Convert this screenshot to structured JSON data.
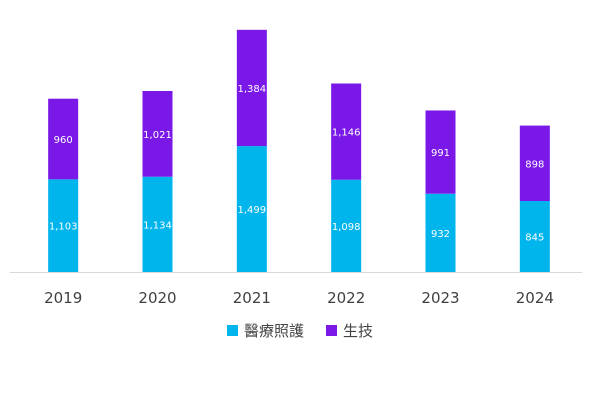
{
  "colors": {
    "medical": "#00b4ec",
    "biotech": "#7a18e8",
    "axis": "#d9d9d9",
    "tick_text": "#404040",
    "label_text": "#ffffff"
  },
  "chart_data": {
    "type": "bar",
    "stacked": true,
    "categories": [
      "2019",
      "2020",
      "2021",
      "2022",
      "2023",
      "2024"
    ],
    "series": [
      {
        "name": "醫療照護",
        "color": "#00b4ec",
        "values": [
          1103,
          1134,
          1499,
          1098,
          932,
          845
        ],
        "labels": [
          "1,103",
          "1,134",
          "1,499",
          "1,098",
          "932",
          "845"
        ]
      },
      {
        "name": "生技",
        "color": "#7a18e8",
        "values": [
          960,
          1021,
          1384,
          1146,
          991,
          898
        ],
        "labels": [
          "960",
          "1,021",
          "1,384",
          "1,146",
          "991",
          "898"
        ]
      }
    ],
    "title": "",
    "xlabel": "",
    "ylabel": "",
    "ylim": [
      0,
      3000
    ],
    "grid": false,
    "legend": "bottom"
  }
}
